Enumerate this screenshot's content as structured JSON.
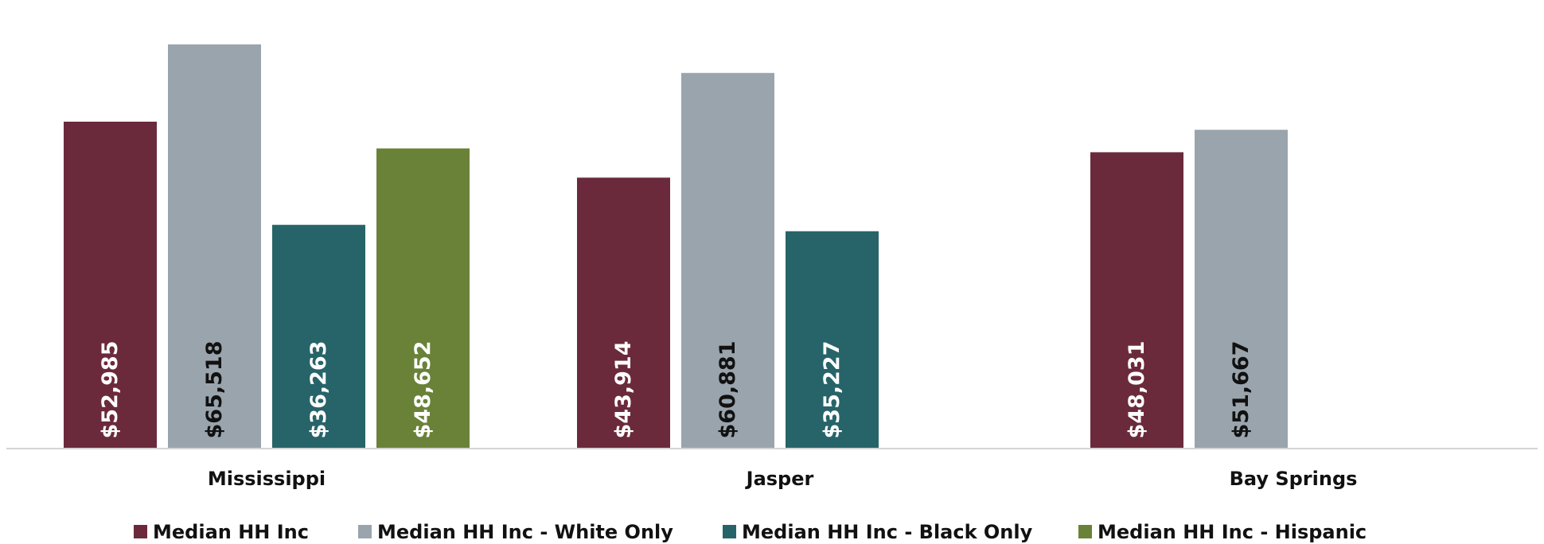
{
  "chart_data": {
    "type": "bar",
    "title": "",
    "xlabel": "",
    "ylabel": "",
    "ylim": [
      0,
      70000
    ],
    "grid": false,
    "legend_position": "bottom",
    "categories": [
      "Mississippi",
      "Jasper",
      "Bay Springs"
    ],
    "series": [
      {
        "name": "Median HH Inc",
        "color": "#6b2a3b",
        "label_color": "#ffffff",
        "values": [
          52985,
          43914,
          48031
        ],
        "labels": [
          "$52,985",
          "$43,914",
          "$48,031"
        ]
      },
      {
        "name": "Median HH Inc - White Only",
        "color": "#9aa4ad",
        "label_color": "#111111",
        "values": [
          65518,
          60881,
          51667
        ],
        "labels": [
          "$65,518",
          "$60,881",
          "$51,667"
        ]
      },
      {
        "name": "Median HH Inc - Black Only",
        "color": "#276469",
        "label_color": "#ffffff",
        "values": [
          36263,
          35227,
          null
        ],
        "labels": [
          "$36,263",
          "$35,227",
          null
        ]
      },
      {
        "name": "Median HH Inc - Hispanic",
        "color": "#6a8238",
        "label_color": "#ffffff",
        "values": [
          48652,
          null,
          null
        ],
        "labels": [
          "$48,652",
          null,
          null
        ]
      }
    ]
  }
}
